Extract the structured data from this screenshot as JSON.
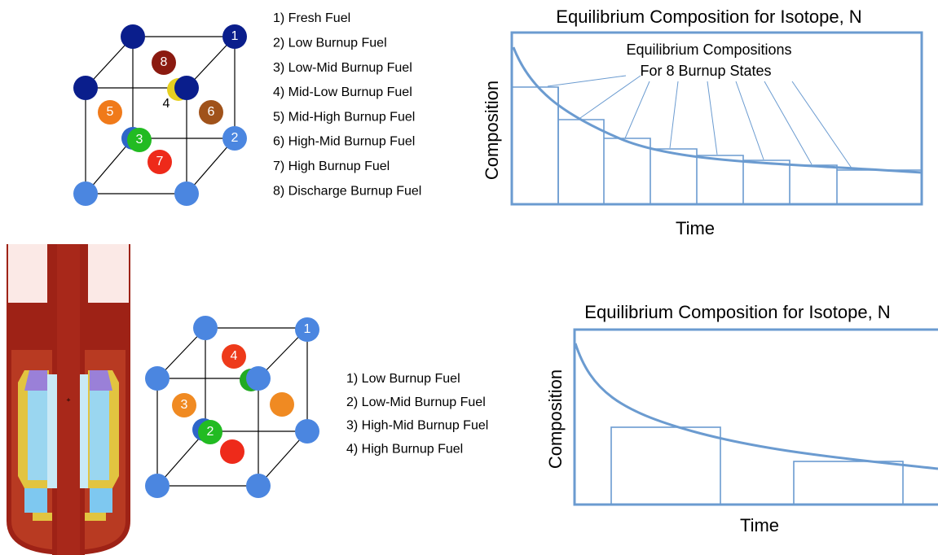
{
  "top": {
    "cube_labels": [
      "1",
      "2",
      "3",
      "4",
      "5",
      "6",
      "7",
      "8"
    ],
    "legend": [
      "1) Fresh Fuel",
      "2) Low Burnup Fuel",
      "3) Low-Mid Burnup Fuel",
      "4) Mid-Low Burnup Fuel",
      "5) Mid-High Burnup Fuel",
      "6) High-Mid Burnup Fuel",
      "7) High Burnup Fuel",
      "8) Discharge Burnup Fuel"
    ],
    "chart": {
      "title": "Equilibrium Composition for Isotope, N",
      "annotation": [
        "Equilibrium Compositions",
        "For 8 Burnup States"
      ],
      "ylabel": "Composition",
      "xlabel": "Time"
    }
  },
  "bottom": {
    "cube_labels": [
      "1",
      "2",
      "3",
      "4"
    ],
    "legend": [
      "1) Low Burnup Fuel",
      "2) Low-Mid Burnup Fuel",
      "3) High-Mid Burnup Fuel",
      "4) High Burnup Fuel"
    ],
    "chart": {
      "title": "Equilibrium Composition for Isotope, N",
      "ylabel": "Composition",
      "xlabel": "Time"
    }
  }
}
